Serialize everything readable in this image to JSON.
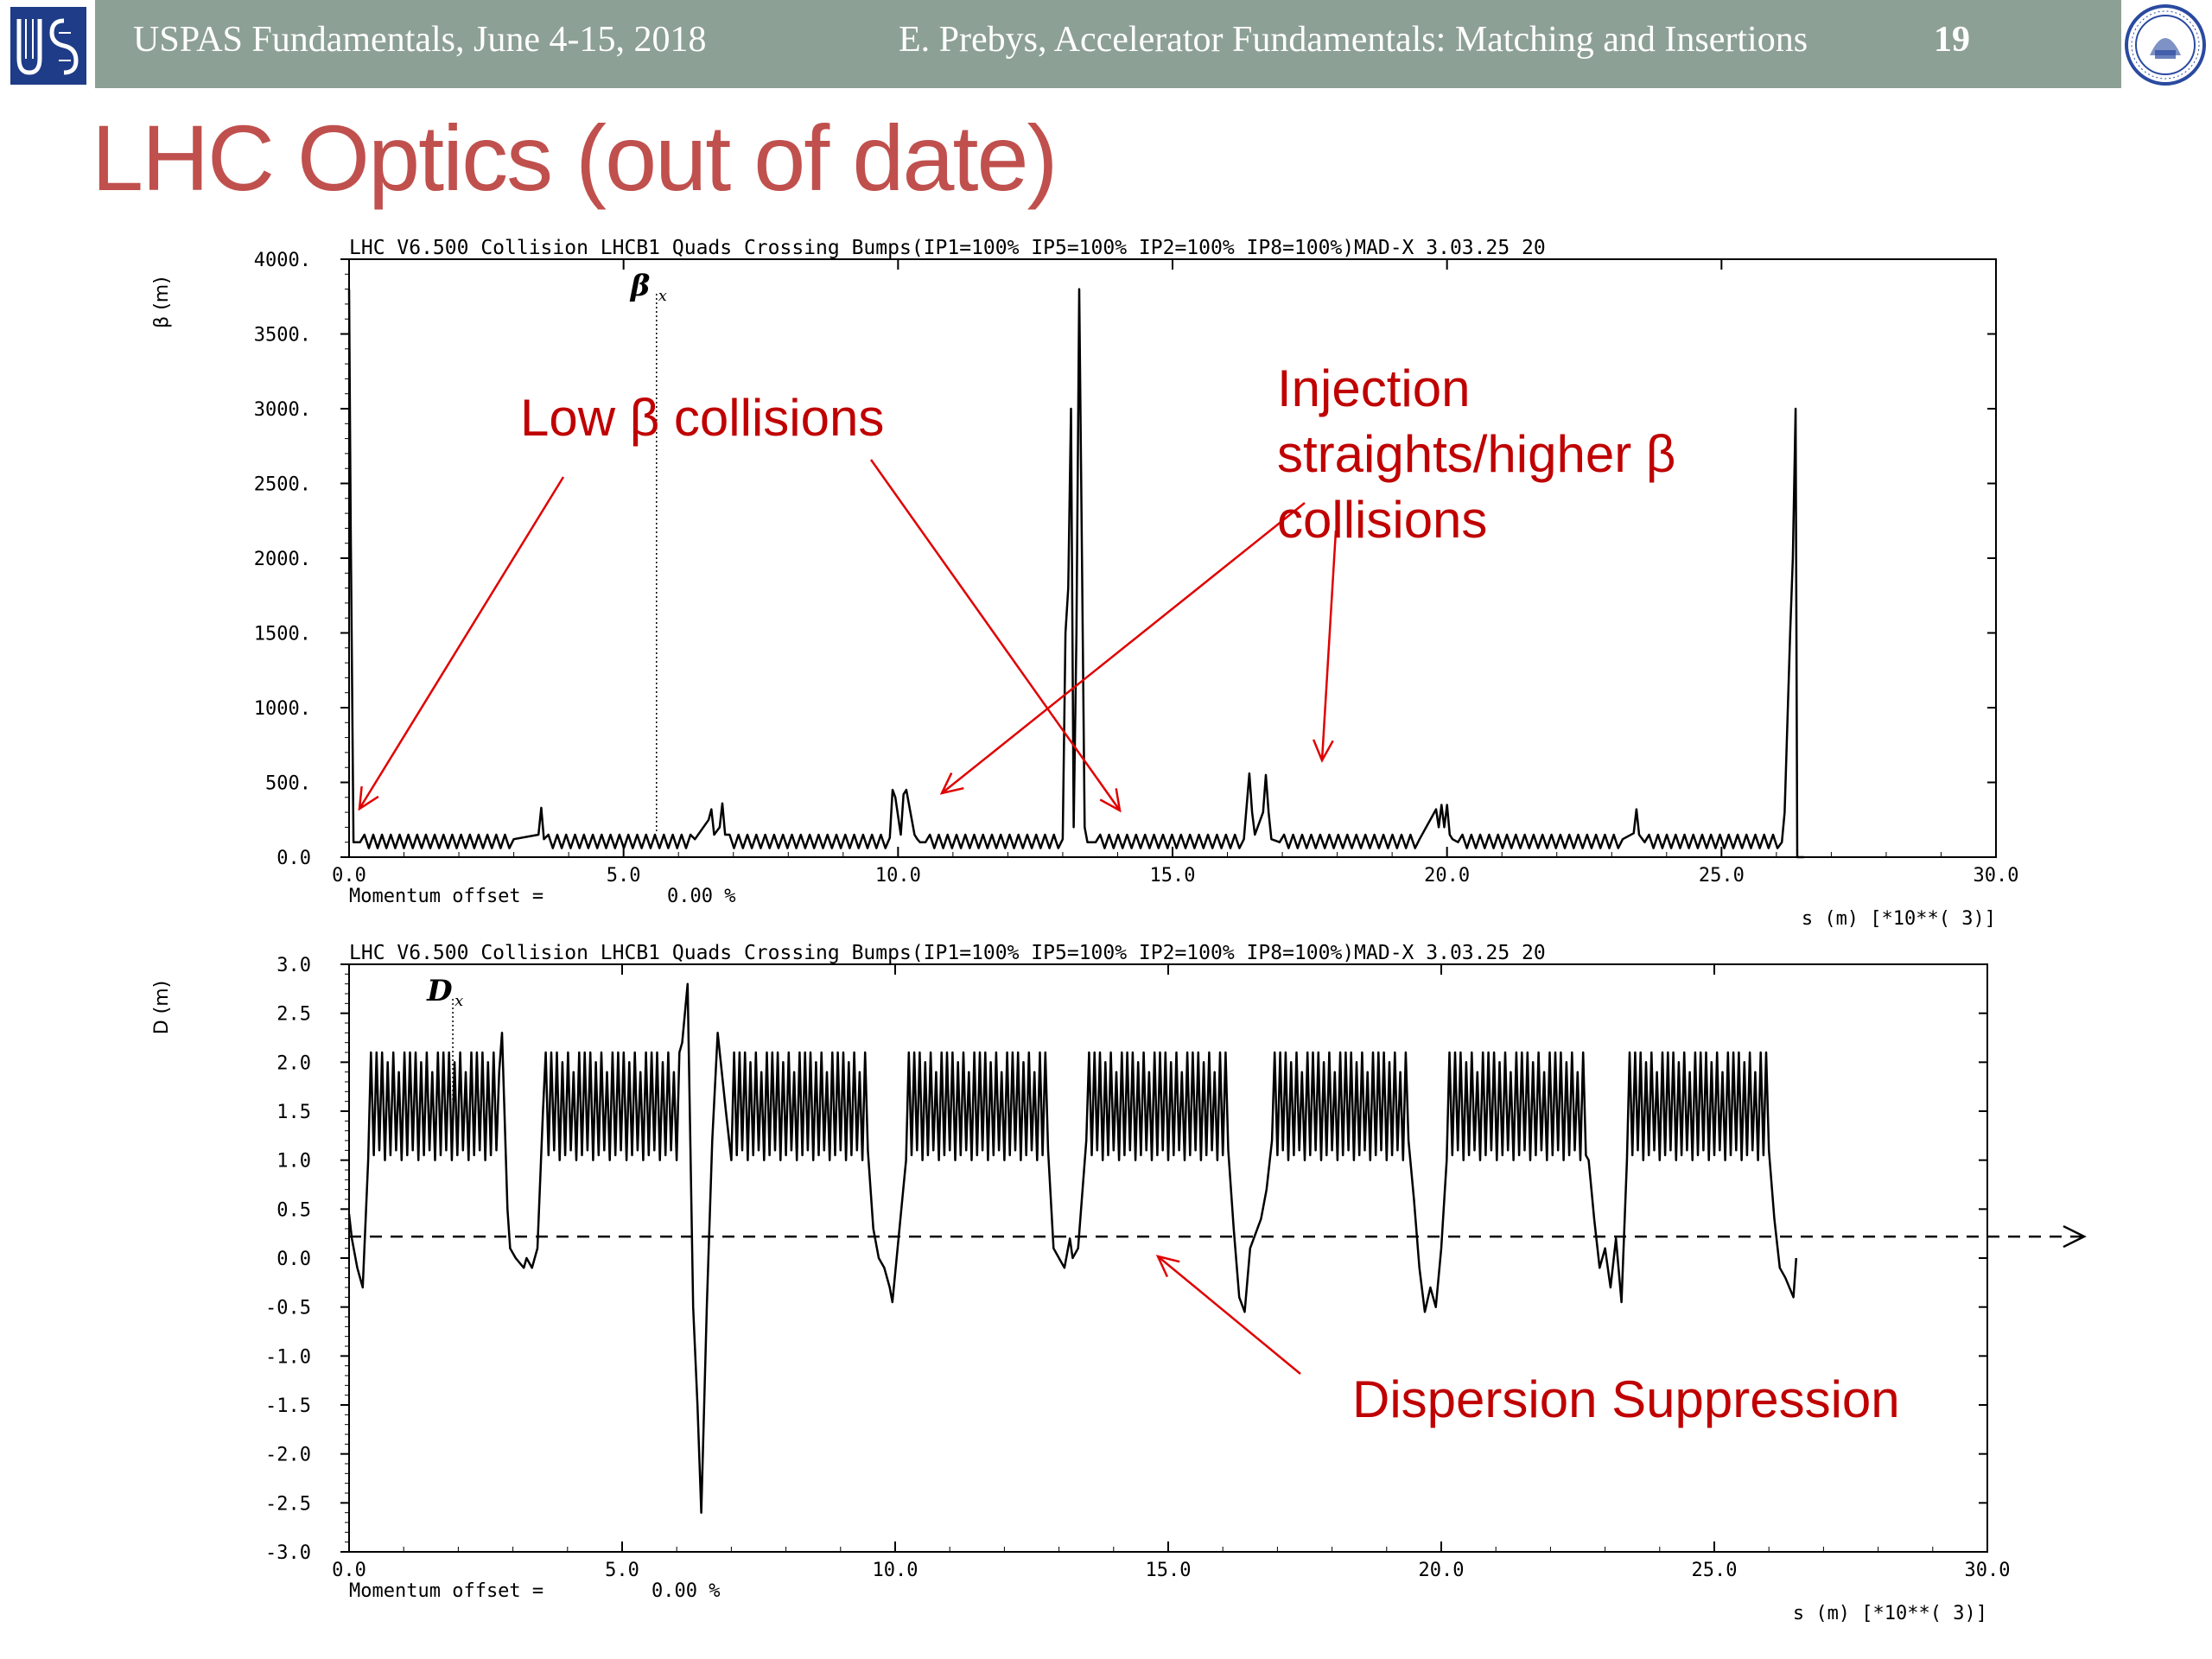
{
  "header": {
    "left": "USPAS Fundamentals, June 4-15, 2018",
    "center": "E. Prebys, Accelerator Fundamentals: Matching and Insertions",
    "page": "19"
  },
  "title": "LHC Optics (out of date)",
  "colors": {
    "header_bg": "#8da095",
    "title": "#c0504d",
    "annotation": "#c00000",
    "line": "#000000"
  },
  "chart_data": [
    {
      "type": "line",
      "title": "LHC V6.500 Collision LHCB1 Quads Crossing Bumps(IP1=100% IP5=100% IP2=100% IP8=100%)MAD-X 3.03.25  20",
      "ylabel": "β (m)",
      "series_label": "β",
      "series_sub": "x",
      "xlabel": "s (m)   [*10**( 3)]",
      "footer_label": "Momentum offset =",
      "footer_value": "0.00 %",
      "xlim": [
        0,
        30
      ],
      "ylim": [
        0,
        4000
      ],
      "xticks": [
        "0.0",
        "5.0",
        "10.0",
        "15.0",
        "20.0",
        "25.0",
        "30.0"
      ],
      "yticks": [
        "0.0",
        "500.",
        "1000.",
        "1500.",
        "2000.",
        "2500.",
        "3000.",
        "3500.",
        "4000."
      ],
      "marker_x": 5.6,
      "x": [
        0.0,
        0.03,
        0.08,
        0.2,
        3.0,
        3.45,
        3.5,
        3.55,
        6.3,
        6.55,
        6.6,
        6.65,
        6.75,
        6.8,
        6.85,
        9.85,
        9.9,
        9.95,
        10.05,
        10.1,
        10.15,
        10.3,
        10.35,
        10.4,
        10.5,
        13.0,
        13.05,
        13.1,
        13.15,
        13.2,
        13.25,
        13.3,
        13.35,
        13.4,
        13.45,
        13.6,
        16.3,
        16.4,
        16.45,
        16.5,
        16.65,
        16.7,
        16.75,
        16.8,
        16.95,
        19.5,
        19.8,
        19.85,
        19.9,
        19.95,
        20.0,
        20.05,
        20.1,
        20.2,
        23.2,
        23.4,
        23.45,
        23.5,
        23.6,
        26.1,
        26.15,
        26.25,
        26.3,
        26.35,
        26.38,
        26.5
      ],
      "values": [
        3800,
        2200,
        100,
        100,
        120,
        150,
        330,
        120,
        120,
        250,
        320,
        150,
        200,
        360,
        150,
        130,
        450,
        400,
        150,
        420,
        450,
        150,
        120,
        100,
        100,
        120,
        1500,
        1800,
        3000,
        200,
        1500,
        3800,
        2000,
        200,
        100,
        100,
        120,
        560,
        300,
        150,
        300,
        550,
        300,
        120,
        100,
        120,
        320,
        200,
        350,
        200,
        350,
        150,
        120,
        100,
        120,
        160,
        320,
        150,
        100,
        100,
        300,
        1500,
        2000,
        3000,
        0,
        0
      ]
    },
    {
      "type": "line",
      "title": "LHC V6.500 Collision LHCB1 Quads Crossing Bumps(IP1=100% IP5=100% IP2=100% IP8=100%)MAD-X 3.03.25  20",
      "ylabel": "D (m)",
      "series_label": "D",
      "series_sub": "x",
      "xlabel": "s (m)   [*10**( 3)]",
      "footer_label": "Momentum offset =",
      "footer_value": "0.00 %",
      "xlim": [
        0,
        30
      ],
      "ylim": [
        -3.0,
        3.0
      ],
      "xticks": [
        "0.0",
        "5.0",
        "10.0",
        "15.0",
        "20.0",
        "25.0",
        "30.0"
      ],
      "yticks": [
        "-3.0",
        "-2.5",
        "-2.0",
        "-1.5",
        "-1.0",
        "-0.5",
        "0.0",
        "0.5",
        "1.0",
        "1.5",
        "2.0",
        "2.5",
        "3.0"
      ],
      "marker_x": 1.9,
      "reference_level": 0.22,
      "arc_ranges": [
        [
          0.4,
          2.8
        ],
        [
          3.6,
          6.1
        ],
        [
          7.0,
          9.5
        ],
        [
          10.3,
          12.8
        ],
        [
          13.6,
          16.1
        ],
        [
          16.9,
          19.4
        ],
        [
          20.2,
          22.7
        ],
        [
          23.5,
          26.0
        ]
      ],
      "arc_low": 1.0,
      "arc_high": 2.1,
      "x": [
        0.0,
        0.05,
        0.15,
        0.25,
        0.35,
        2.8,
        2.9,
        2.95,
        3.05,
        3.2,
        3.25,
        3.35,
        3.45,
        3.55,
        6.1,
        6.2,
        6.3,
        6.38,
        6.45,
        6.55,
        6.65,
        6.75,
        6.9,
        7.0,
        9.5,
        9.6,
        9.7,
        9.8,
        9.9,
        9.95,
        10.2,
        12.8,
        12.9,
        13.0,
        13.1,
        13.2,
        13.25,
        13.35,
        13.5,
        16.1,
        16.2,
        16.3,
        16.4,
        16.5,
        16.7,
        16.8,
        16.9,
        19.4,
        19.5,
        19.6,
        19.7,
        19.8,
        19.9,
        20.0,
        20.1,
        22.7,
        22.8,
        22.9,
        23.0,
        23.1,
        23.2,
        23.3,
        23.4,
        26.0,
        26.1,
        26.2,
        26.3,
        26.45,
        26.5
      ],
      "values": [
        0.45,
        0.2,
        -0.1,
        -0.3,
        1.0,
        2.3,
        0.5,
        0.1,
        0.0,
        -0.1,
        0.0,
        -0.1,
        0.1,
        1.5,
        2.2,
        2.8,
        -0.5,
        -1.5,
        -2.6,
        -0.5,
        1.2,
        2.3,
        1.5,
        1.0,
        1.1,
        0.3,
        0.0,
        -0.1,
        -0.3,
        -0.45,
        1.0,
        1.1,
        0.1,
        0.0,
        -0.1,
        0.2,
        0.0,
        0.1,
        1.2,
        1.1,
        0.3,
        -0.4,
        -0.55,
        0.1,
        0.4,
        0.7,
        1.2,
        1.2,
        0.6,
        -0.1,
        -0.55,
        -0.3,
        -0.5,
        0.1,
        1.0,
        1.0,
        0.4,
        -0.1,
        0.1,
        -0.3,
        0.2,
        -0.45,
        1.0,
        1.1,
        0.4,
        -0.1,
        -0.2,
        -0.4,
        0.0
      ]
    }
  ],
  "annotations": {
    "low_beta": "Low β collisions",
    "injection_l1": "Injection",
    "injection_l2": "straights/higher β",
    "injection_l3": "collisions",
    "dispersion": "Dispersion Suppression"
  }
}
